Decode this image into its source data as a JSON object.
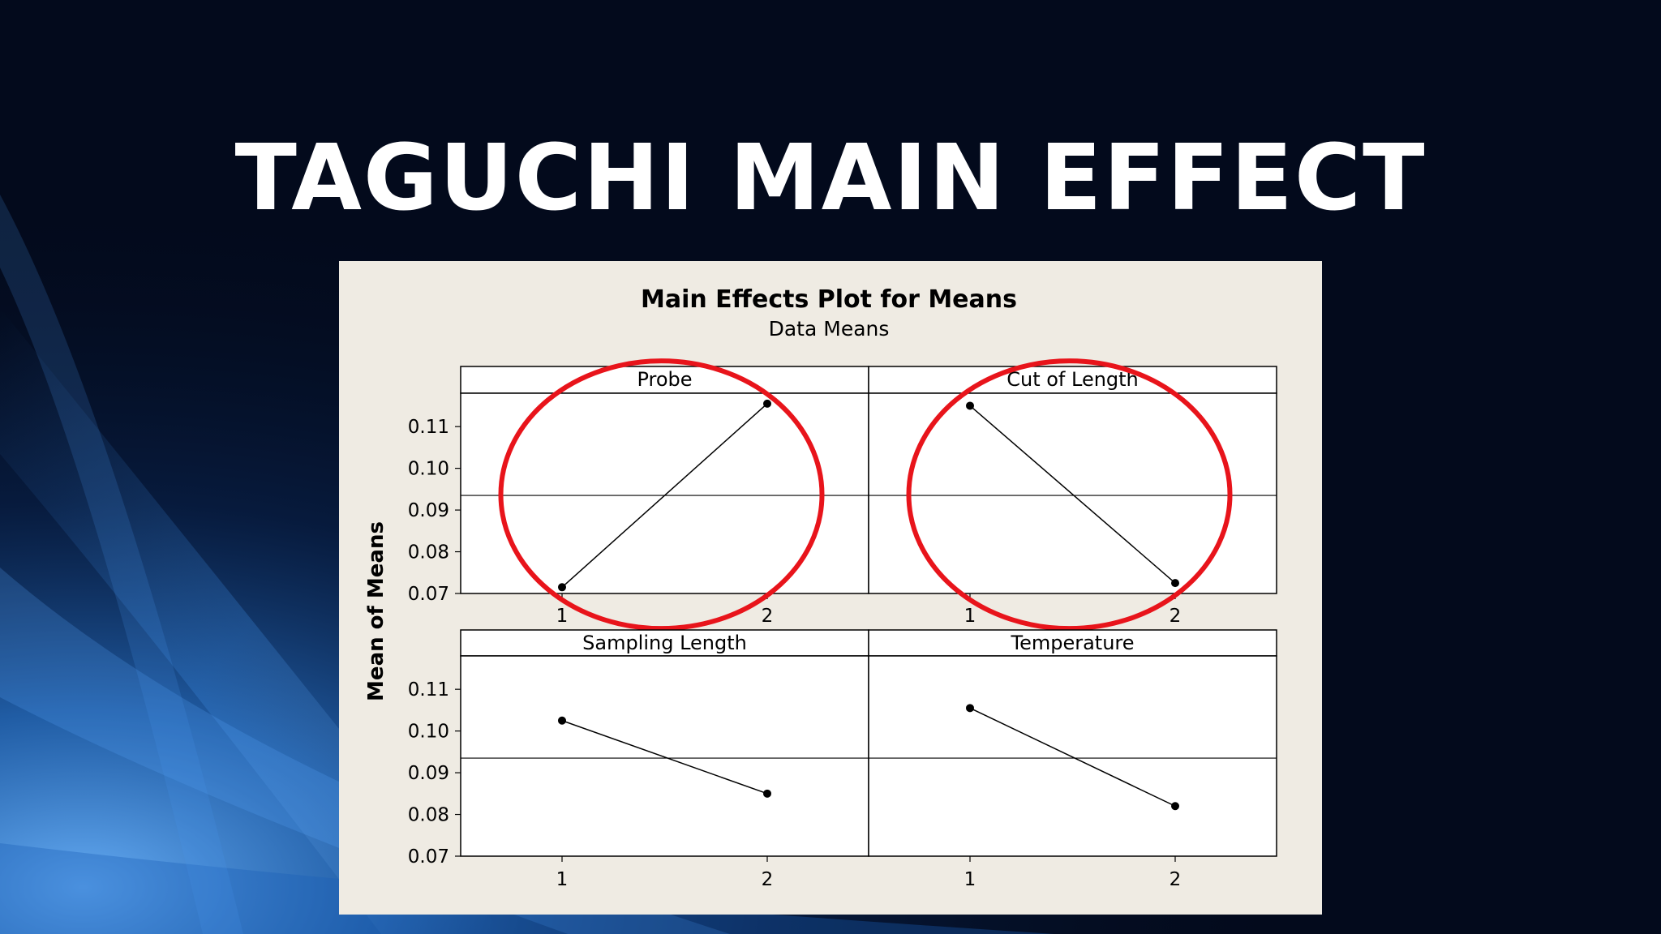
{
  "slide": {
    "title": "TAGUCHI MAIN EFFECT"
  },
  "colors": {
    "background": "#030a1c",
    "accent_blue": "#2f7fd6",
    "panel": "#efebe3",
    "highlight_circle": "#e8141b"
  },
  "chart_data": {
    "type": "line",
    "title": "Main Effects Plot for Means",
    "subtitle": "Data Means",
    "ylabel": "Mean of Means",
    "ylim": [
      0.07,
      0.118
    ],
    "yticks": [
      0.07,
      0.08,
      0.09,
      0.1,
      0.11
    ],
    "ytick_labels": [
      "0.07",
      "0.08",
      "0.09",
      "0.10",
      "0.11"
    ],
    "overall_mean": 0.0935,
    "grid": false,
    "panels": [
      {
        "name": "Probe",
        "categories": [
          "1",
          "2"
        ],
        "values": [
          0.0715,
          0.1155
        ],
        "highlighted": true
      },
      {
        "name": "Cut of Length",
        "categories": [
          "1",
          "2"
        ],
        "values": [
          0.115,
          0.0725
        ],
        "highlighted": true
      },
      {
        "name": "Sampling Length",
        "categories": [
          "1",
          "2"
        ],
        "values": [
          0.1025,
          0.085
        ],
        "highlighted": false
      },
      {
        "name": "Temperature",
        "categories": [
          "1",
          "2"
        ],
        "values": [
          0.1055,
          0.082
        ],
        "highlighted": false
      }
    ]
  }
}
